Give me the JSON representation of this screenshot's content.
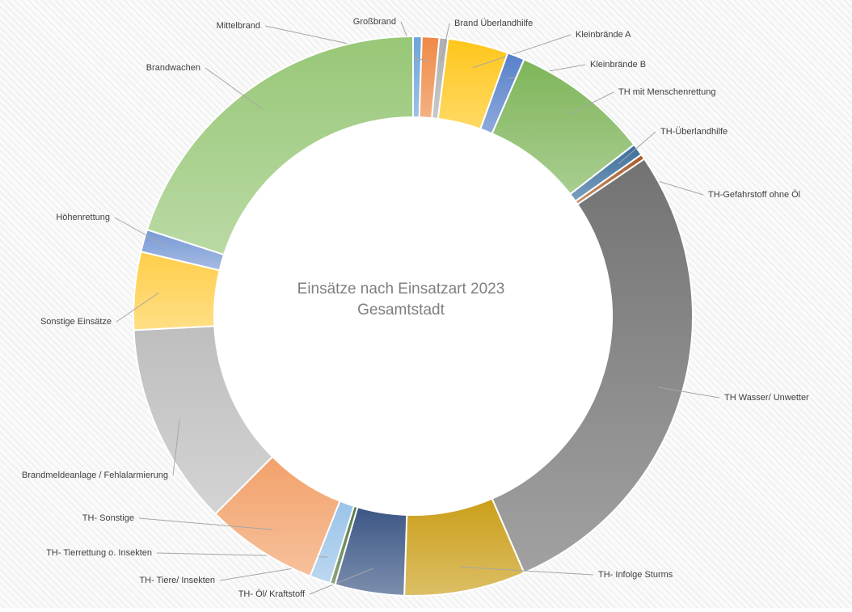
{
  "chart_data": {
    "type": "donut",
    "title": "Einsätze nach Einsatzart 2023",
    "subtitle": "Gesamtstadt",
    "categories": [
      "Großbrand",
      "Mittelbrand",
      "Brand Überlandhilfe",
      "Kleinbrände A",
      "Kleinbrände B",
      "TH mit Menschenrettung",
      "TH-Überlandhilfe",
      "TH-Gefahrstoff ohne Öl",
      "TH Wasser/ Unwetter",
      "TH- Infolge Sturms",
      "TH- Öl/ Kraftstoff",
      "TH- Tiere/ Insekten",
      "TH- Tierrettung o. Insekten",
      "TH- Sonstige",
      "Brandmeldeanlage / Fehlalarmierung",
      "Sonstige Einsätze",
      "Höhenrettung",
      "Brandwachen"
    ],
    "values": [
      0.5,
      1,
      0.5,
      3.5,
      1,
      8,
      0.7,
      0.3,
      28,
      7,
      4,
      0.3,
      1.2,
      6.5,
      11.7,
      4.5,
      1.3,
      20
    ],
    "colors": [
      "#5b9bd5",
      "#ed7d31",
      "#a5a5a5",
      "#ffc000",
      "#4472c4",
      "#70ad47",
      "#255e91",
      "#9e480e",
      "#636363",
      "#c59400",
      "#264478",
      "#43682b",
      "#8fbde6",
      "#f1975a",
      "#b7b7b7",
      "#ffc935",
      "#698ed0",
      "#8cc168"
    ]
  }
}
